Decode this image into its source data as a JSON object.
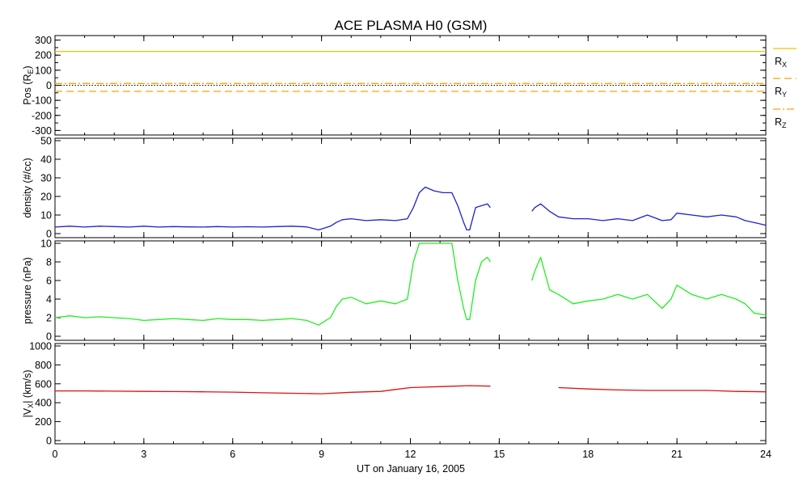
{
  "chart_data": {
    "title": "ACE PLASMA H0 (GSM)",
    "type": "line",
    "x_label": "UT on January 16, 2005",
    "x_range": [
      0,
      24
    ],
    "x_ticks": [
      "0",
      "3",
      "6",
      "9",
      "12",
      "15",
      "18",
      "21",
      "24"
    ],
    "data_gap_hours": [
      14.7,
      15.95
    ],
    "panels": [
      {
        "id": "pos",
        "ylabel": "Pos (R",
        "ylabel_sub": "E",
        "ylabel_suffix": ")",
        "ylim": [
          -330,
          330
        ],
        "yticks": [
          "300",
          "200",
          "100",
          "0",
          "-100",
          "-200",
          "-300"
        ],
        "zero_line": true,
        "series": [
          {
            "name": "R",
            "sub": "X",
            "color": "#f2c300",
            "style": "solid",
            "x": [
              0,
              24
            ],
            "y": [
              225,
              225
            ]
          },
          {
            "name": "R",
            "sub": "Y",
            "color": "#ffa500",
            "style": "dashed",
            "x": [
              0,
              24
            ],
            "y": [
              -40,
              -40
            ]
          },
          {
            "name": "R",
            "sub": "Z",
            "color": "#ffa500",
            "style": "dashdot",
            "x": [
              0,
              24
            ],
            "y": [
              12,
              12
            ]
          }
        ]
      },
      {
        "id": "density",
        "ylabel": "density (#/cc)",
        "ylim": [
          0,
          50
        ],
        "yticks": [
          "50",
          "40",
          "30",
          "20",
          "10",
          "0"
        ],
        "series": [
          {
            "name": "density",
            "color": "#2020d0",
            "x": [
              0,
              0.5,
              1,
              1.5,
              2,
              2.5,
              3,
              3.5,
              4,
              4.5,
              5,
              5.5,
              6,
              6.5,
              7,
              7.5,
              8,
              8.5,
              8.9,
              9.1,
              9.3,
              9.5,
              9.7,
              10,
              10.5,
              11,
              11.5,
              11.9,
              12.1,
              12.3,
              12.5,
              12.8,
              13.1,
              13.4,
              13.6,
              13.8,
              13.9,
              14.0,
              14.2,
              14.4,
              14.6,
              14.7,
              15.95,
              16.1,
              16.2,
              16.4,
              16.7,
              17,
              17.5,
              18,
              18.5,
              19,
              19.5,
              20,
              20.5,
              20.8,
              21,
              21.5,
              22,
              22.5,
              23,
              23.3,
              23.6,
              24
            ],
            "y": [
              3.5,
              4,
              3.5,
              4,
              3.8,
              3.5,
              4,
              3.5,
              3.8,
              3.6,
              3.5,
              3.8,
              3.5,
              3.7,
              3.5,
              3.8,
              4,
              3.6,
              2,
              3,
              4,
              6,
              7.5,
              8,
              7,
              7.5,
              7,
              8,
              14,
              22,
              25,
              23,
              22,
              22,
              15,
              6,
              2,
              2,
              14,
              15,
              16,
              14,
              null,
              12,
              14,
              16,
              12,
              9,
              8,
              8,
              7,
              8,
              7,
              10,
              7,
              7.5,
              11,
              10,
              9,
              10,
              9,
              7,
              6,
              4.5
            ]
          }
        ]
      },
      {
        "id": "pressure",
        "ylabel": "pressure (nPa)",
        "ylim": [
          0,
          10
        ],
        "yticks": [
          "10",
          "8",
          "6",
          "4",
          "2",
          "0"
        ],
        "series": [
          {
            "name": "pressure",
            "color": "#22ee22",
            "x": [
              0,
              0.5,
              1,
              1.5,
              2,
              2.5,
              3,
              3.5,
              4,
              4.5,
              5,
              5.5,
              6,
              6.5,
              7,
              7.5,
              8,
              8.5,
              8.9,
              9.1,
              9.3,
              9.5,
              9.7,
              10,
              10.5,
              11,
              11.5,
              11.9,
              12.1,
              12.3,
              12.5,
              12.8,
              13.1,
              13.4,
              13.6,
              13.8,
              13.9,
              14.0,
              14.2,
              14.4,
              14.6,
              14.7,
              15.95,
              16.1,
              16.2,
              16.4,
              16.7,
              17,
              17.5,
              18,
              18.5,
              19,
              19.5,
              20,
              20.5,
              20.8,
              21,
              21.5,
              22,
              22.5,
              23,
              23.3,
              23.6,
              24
            ],
            "y": [
              2,
              2.2,
              2,
              2.1,
              2,
              1.9,
              1.7,
              1.8,
              1.9,
              1.8,
              1.7,
              1.9,
              1.8,
              1.8,
              1.7,
              1.8,
              1.9,
              1.7,
              1.2,
              1.6,
              2,
              3.2,
              4,
              4.2,
              3.5,
              3.8,
              3.5,
              4,
              8,
              10,
              10,
              10,
              10,
              10,
              6,
              3,
              1.8,
              1.8,
              6,
              8,
              8.5,
              8,
              null,
              6,
              7,
              8.5,
              5,
              4.5,
              3.5,
              3.8,
              4,
              4.5,
              4,
              4.5,
              3,
              4,
              5.5,
              4.5,
              4,
              4.5,
              4,
              3.5,
              2.5,
              2.3
            ]
          }
        ]
      },
      {
        "id": "vx",
        "ylabel": "|V",
        "ylabel_sub": "X",
        "ylabel_suffix": "| (km/s)",
        "ylim": [
          0,
          1000
        ],
        "yticks": [
          "1000",
          "800",
          "600",
          "400",
          "200",
          "0"
        ],
        "series": [
          {
            "name": "|Vx|",
            "color": "#dd1111",
            "x": [
              0,
              1,
              2,
              3,
              4,
              5,
              6,
              7,
              8,
              9,
              10,
              11,
              11.5,
              12,
              12.5,
              13,
              13.5,
              14,
              14.7,
              15.95,
              17,
              18,
              19,
              20,
              21,
              22,
              23,
              24
            ],
            "y": [
              525,
              525,
              522,
              520,
              518,
              515,
              512,
              505,
              500,
              495,
              510,
              520,
              540,
              560,
              565,
              570,
              575,
              580,
              575,
              null,
              560,
              545,
              535,
              530,
              530,
              530,
              520,
              515
            ]
          }
        ]
      }
    ]
  }
}
